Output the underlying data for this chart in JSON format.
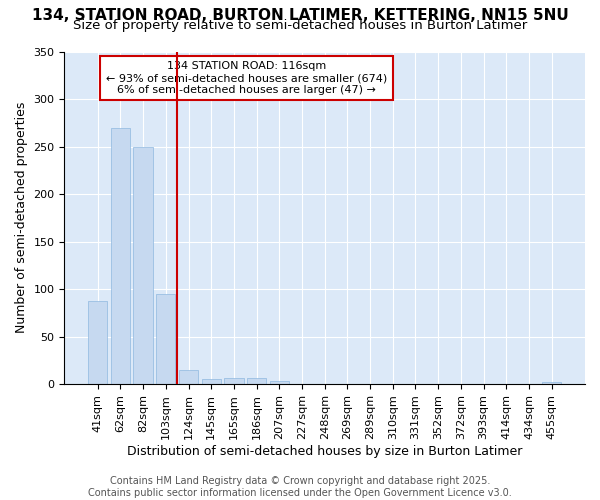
{
  "title1": "134, STATION ROAD, BURTON LATIMER, KETTERING, NN15 5NU",
  "title2": "Size of property relative to semi-detached houses in Burton Latimer",
  "xlabel": "Distribution of semi-detached houses by size in Burton Latimer",
  "ylabel": "Number of semi-detached properties",
  "bar_labels": [
    "41sqm",
    "62sqm",
    "82sqm",
    "103sqm",
    "124sqm",
    "145sqm",
    "165sqm",
    "186sqm",
    "207sqm",
    "227sqm",
    "248sqm",
    "269sqm",
    "289sqm",
    "310sqm",
    "331sqm",
    "352sqm",
    "372sqm",
    "393sqm",
    "414sqm",
    "434sqm",
    "455sqm"
  ],
  "bar_values": [
    87,
    270,
    250,
    95,
    15,
    5,
    6,
    6,
    3,
    0,
    0,
    0,
    0,
    0,
    0,
    0,
    0,
    0,
    0,
    0,
    2
  ],
  "bar_color": "#c6d9f0",
  "bar_edge_color": "#8fb8e0",
  "vline_color": "#cc0000",
  "annotation_box_color": "#cc0000",
  "annotation_title": "134 STATION ROAD: 116sqm",
  "annotation_line1": "← 93% of semi-detached houses are smaller (674)",
  "annotation_line2": "6% of semi-detached houses are larger (47) →",
  "ylim": [
    0,
    350
  ],
  "yticks": [
    0,
    50,
    100,
    150,
    200,
    250,
    300,
    350
  ],
  "footer1": "Contains HM Land Registry data © Crown copyright and database right 2025.",
  "footer2": "Contains public sector information licensed under the Open Government Licence v3.0.",
  "bg_color": "#ffffff",
  "plot_bg_color": "#dce9f8",
  "title_fontsize": 11,
  "subtitle_fontsize": 9.5,
  "axis_label_fontsize": 9,
  "tick_fontsize": 8,
  "annotation_fontsize": 8,
  "footer_fontsize": 7
}
